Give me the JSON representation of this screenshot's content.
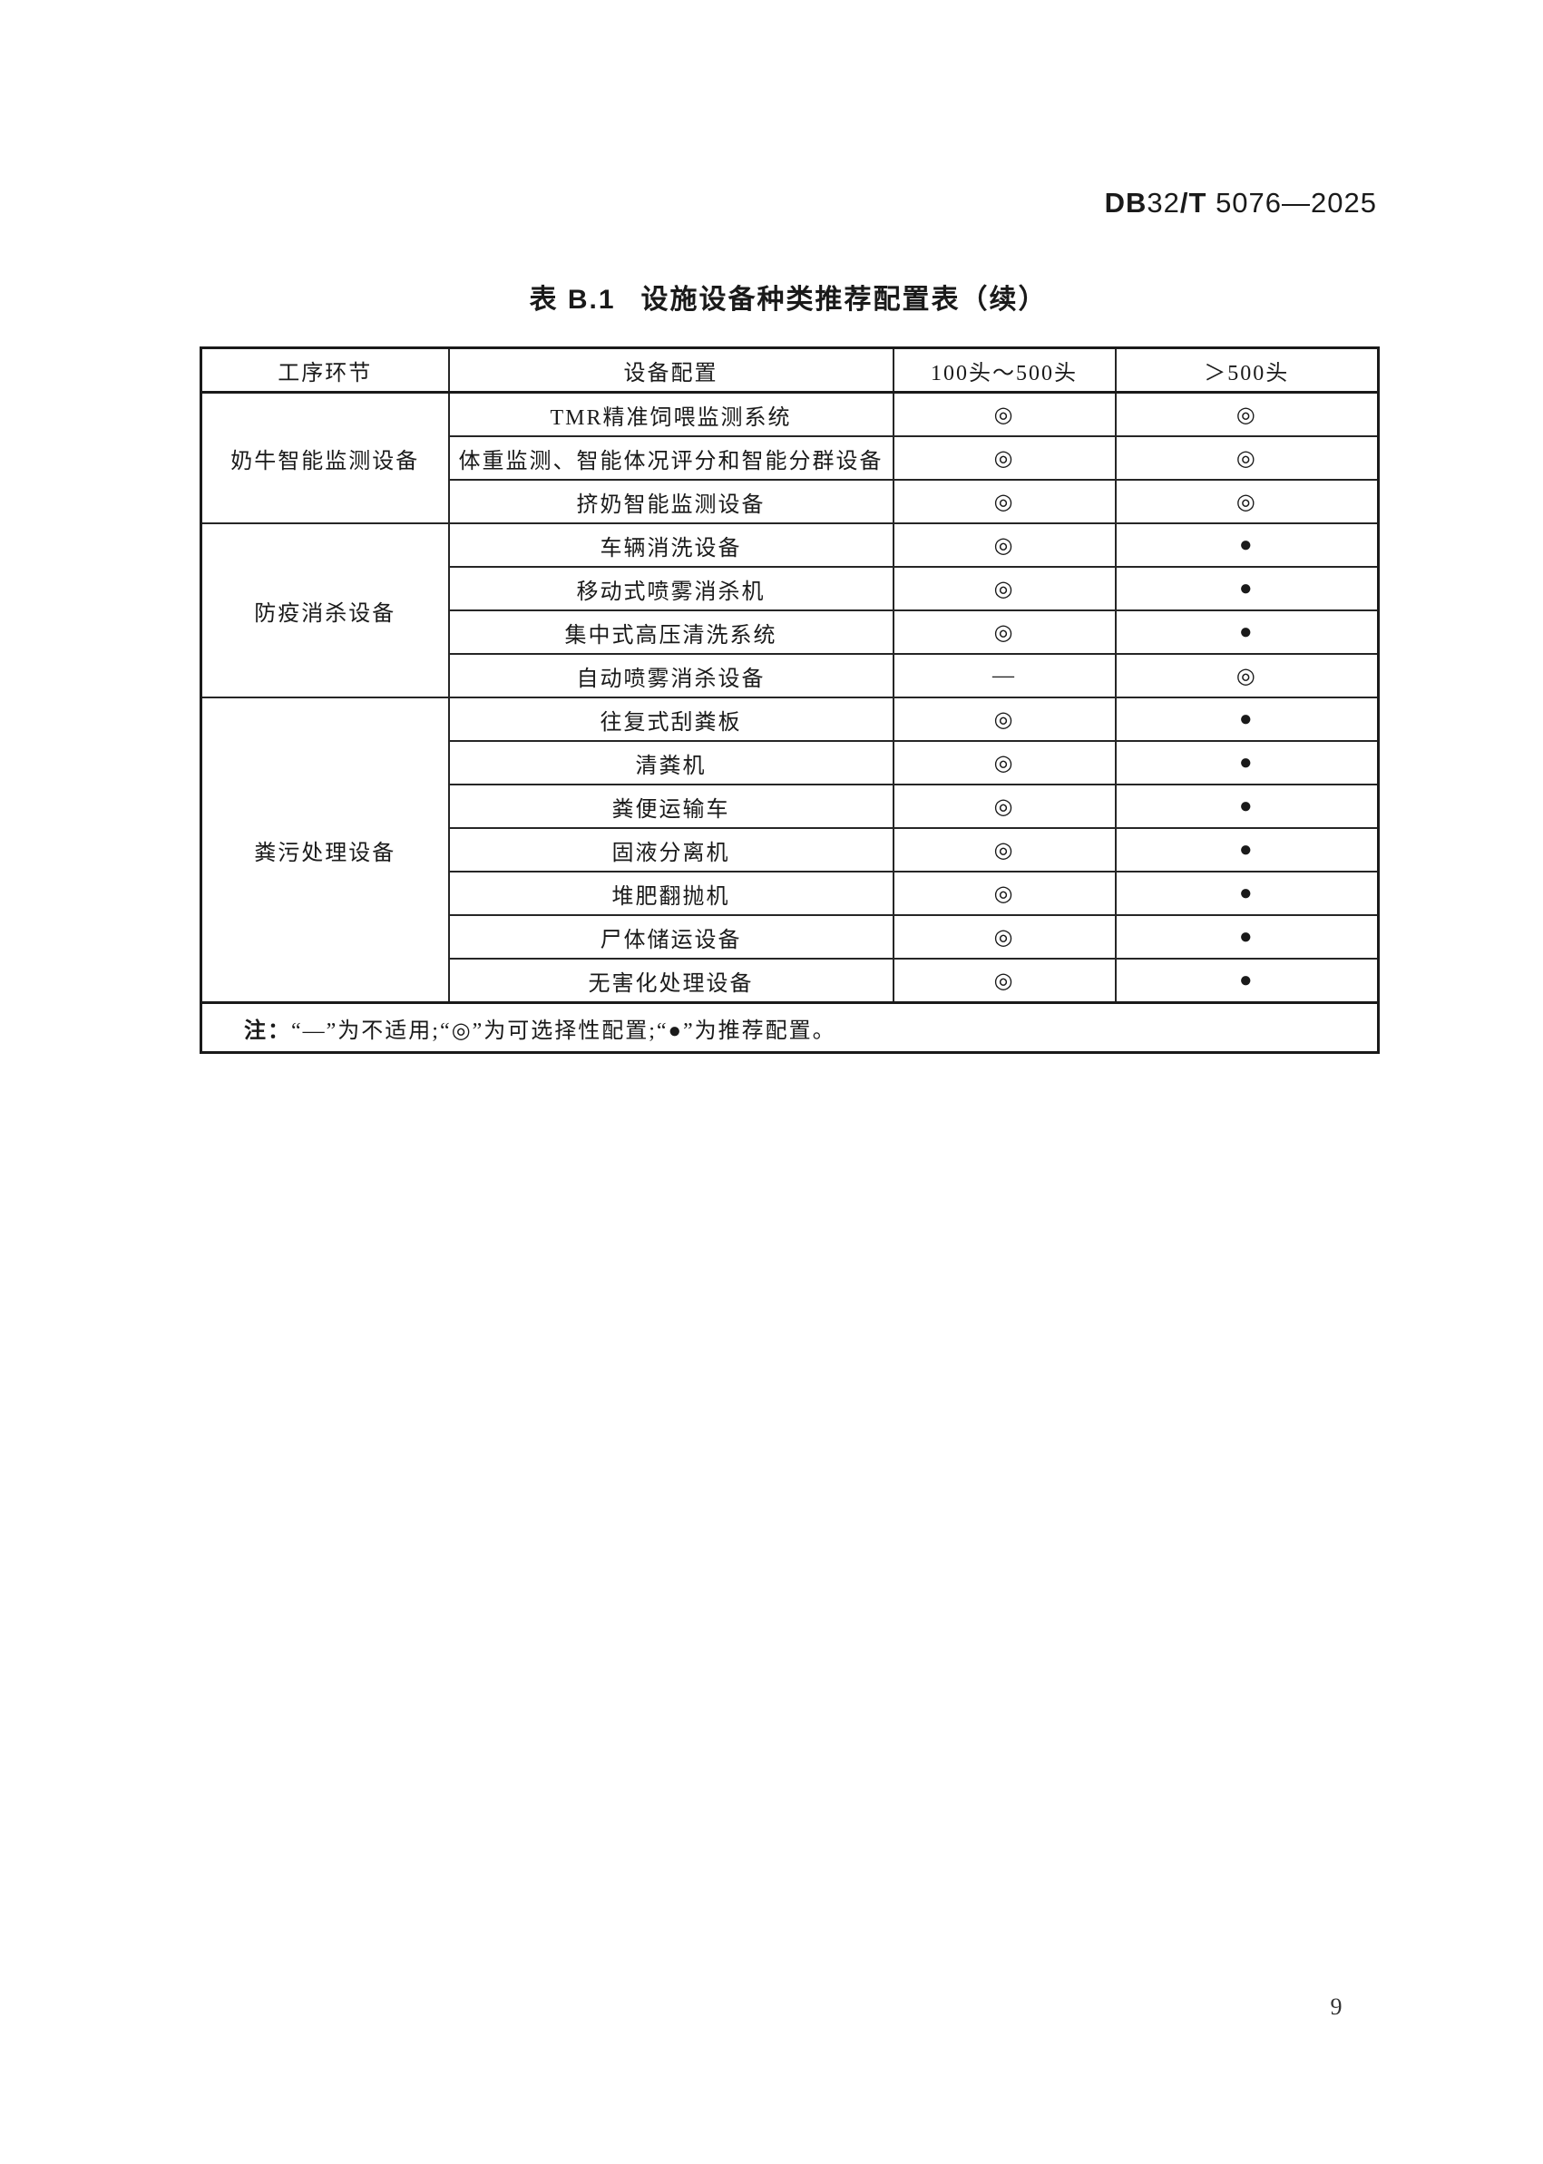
{
  "header": {
    "doc_number_full": "DB32/T 5076—2025",
    "doc_number": {
      "p1": "DB",
      "p2": "32",
      "p3": "/T",
      "p4": " 5076—2025"
    }
  },
  "table": {
    "title_label": "表 B.1",
    "title_text": "设施设备种类推荐配置表（续）",
    "columns": [
      "工序环节",
      "设备配置",
      "100头～500头",
      "＞500头"
    ],
    "groups": [
      {
        "stage": "奶牛智能监测设备",
        "rows": [
          {
            "device": "TMR精准饲喂监测系统",
            "col_100_500": "◎",
            "col_over_500": "◎"
          },
          {
            "device": "体重监测、智能体况评分和智能分群设备",
            "col_100_500": "◎",
            "col_over_500": "◎"
          },
          {
            "device": "挤奶智能监测设备",
            "col_100_500": "◎",
            "col_over_500": "◎"
          }
        ]
      },
      {
        "stage": "防疫消杀设备",
        "rows": [
          {
            "device": "车辆消洗设备",
            "col_100_500": "◎",
            "col_over_500": "●"
          },
          {
            "device": "移动式喷雾消杀机",
            "col_100_500": "◎",
            "col_over_500": "●"
          },
          {
            "device": "集中式高压清洗系统",
            "col_100_500": "◎",
            "col_over_500": "●"
          },
          {
            "device": "自动喷雾消杀设备",
            "col_100_500": "—",
            "col_over_500": "◎"
          }
        ]
      },
      {
        "stage": "粪污处理设备",
        "rows": [
          {
            "device": "往复式刮粪板",
            "col_100_500": "◎",
            "col_over_500": "●"
          },
          {
            "device": "清粪机",
            "col_100_500": "◎",
            "col_over_500": "●"
          },
          {
            "device": "粪便运输车",
            "col_100_500": "◎",
            "col_over_500": "●"
          },
          {
            "device": "固液分离机",
            "col_100_500": "◎",
            "col_over_500": "●"
          },
          {
            "device": "堆肥翻抛机",
            "col_100_500": "◎",
            "col_over_500": "●"
          },
          {
            "device": "尸体储运设备",
            "col_100_500": "◎",
            "col_over_500": "●"
          },
          {
            "device": "无害化处理设备",
            "col_100_500": "◎",
            "col_over_500": "●"
          }
        ]
      }
    ],
    "note_label": "注：",
    "note_text": "“—”为不适用;“◎”为可选择性配置;“●”为推荐配置。"
  },
  "footer": {
    "page_number": "9"
  }
}
